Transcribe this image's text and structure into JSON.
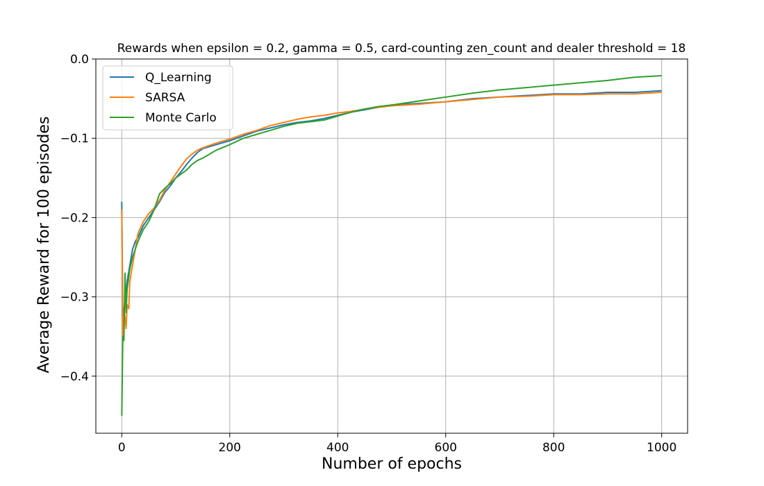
{
  "chart_data": {
    "type": "line",
    "title": "Rewards when epsilon = 0.2, gamma = 0.5, card-counting zen_count and dealer threshold = 18",
    "xlabel": "Number of epochs",
    "ylabel": "Average Reward for 100 episodes",
    "xlim": [
      -48,
      1048
    ],
    "ylim": [
      -0.472,
      0.0
    ],
    "xticks": [
      0,
      200,
      400,
      600,
      800,
      1000
    ],
    "xtick_labels": [
      "0",
      "200",
      "400",
      "600",
      "800",
      "1000"
    ],
    "yticks": [
      0.0,
      -0.1,
      -0.2,
      -0.3,
      -0.4
    ],
    "ytick_labels": [
      "0.0",
      "−0.1",
      "−0.2",
      "−0.3",
      "−0.4"
    ],
    "grid": true,
    "legend_position": "top-left",
    "series": [
      {
        "name": "Q_Learning",
        "color": "#1f77b4",
        "points": [
          [
            0,
            -0.18
          ],
          [
            2,
            -0.33
          ],
          [
            5,
            -0.31
          ],
          [
            8,
            -0.3
          ],
          [
            10,
            -0.28
          ],
          [
            15,
            -0.26
          ],
          [
            20,
            -0.24
          ],
          [
            25,
            -0.23
          ],
          [
            30,
            -0.225
          ],
          [
            40,
            -0.21
          ],
          [
            50,
            -0.2
          ],
          [
            60,
            -0.19
          ],
          [
            70,
            -0.18
          ],
          [
            80,
            -0.168
          ],
          [
            90,
            -0.16
          ],
          [
            100,
            -0.15
          ],
          [
            110,
            -0.142
          ],
          [
            120,
            -0.133
          ],
          [
            130,
            -0.125
          ],
          [
            140,
            -0.118
          ],
          [
            150,
            -0.113
          ],
          [
            175,
            -0.108
          ],
          [
            200,
            -0.103
          ],
          [
            225,
            -0.097
          ],
          [
            250,
            -0.091
          ],
          [
            275,
            -0.087
          ],
          [
            300,
            -0.083
          ],
          [
            325,
            -0.08
          ],
          [
            350,
            -0.078
          ],
          [
            375,
            -0.075
          ],
          [
            400,
            -0.071
          ],
          [
            425,
            -0.067
          ],
          [
            450,
            -0.064
          ],
          [
            475,
            -0.061
          ],
          [
            500,
            -0.058
          ],
          [
            550,
            -0.056
          ],
          [
            600,
            -0.054
          ],
          [
            650,
            -0.05
          ],
          [
            700,
            -0.048
          ],
          [
            750,
            -0.046
          ],
          [
            800,
            -0.044
          ],
          [
            850,
            -0.044
          ],
          [
            900,
            -0.042
          ],
          [
            950,
            -0.042
          ],
          [
            1000,
            -0.04
          ]
        ]
      },
      {
        "name": "SARSA",
        "color": "#ff7f0e",
        "points": [
          [
            0,
            -0.19
          ],
          [
            2,
            -0.35
          ],
          [
            5,
            -0.32
          ],
          [
            8,
            -0.34
          ],
          [
            10,
            -0.31
          ],
          [
            13,
            -0.315
          ],
          [
            15,
            -0.28
          ],
          [
            20,
            -0.26
          ],
          [
            25,
            -0.24
          ],
          [
            30,
            -0.22
          ],
          [
            40,
            -0.205
          ],
          [
            50,
            -0.195
          ],
          [
            60,
            -0.188
          ],
          [
            70,
            -0.178
          ],
          [
            80,
            -0.165
          ],
          [
            90,
            -0.155
          ],
          [
            100,
            -0.145
          ],
          [
            110,
            -0.135
          ],
          [
            120,
            -0.126
          ],
          [
            130,
            -0.12
          ],
          [
            140,
            -0.115
          ],
          [
            150,
            -0.112
          ],
          [
            175,
            -0.106
          ],
          [
            200,
            -0.101
          ],
          [
            225,
            -0.095
          ],
          [
            250,
            -0.09
          ],
          [
            275,
            -0.084
          ],
          [
            300,
            -0.08
          ],
          [
            325,
            -0.076
          ],
          [
            350,
            -0.073
          ],
          [
            375,
            -0.071
          ],
          [
            400,
            -0.068
          ],
          [
            425,
            -0.066
          ],
          [
            450,
            -0.063
          ],
          [
            475,
            -0.061
          ],
          [
            500,
            -0.059
          ],
          [
            550,
            -0.057
          ],
          [
            600,
            -0.054
          ],
          [
            650,
            -0.051
          ],
          [
            700,
            -0.048
          ],
          [
            750,
            -0.047
          ],
          [
            800,
            -0.045
          ],
          [
            850,
            -0.045
          ],
          [
            900,
            -0.044
          ],
          [
            950,
            -0.044
          ],
          [
            1000,
            -0.042
          ]
        ]
      },
      {
        "name": "Monte Carlo",
        "color": "#2ca02c",
        "points": [
          [
            0,
            -0.45
          ],
          [
            2,
            -0.35
          ],
          [
            4,
            -0.355
          ],
          [
            6,
            -0.27
          ],
          [
            8,
            -0.32
          ],
          [
            10,
            -0.29
          ],
          [
            15,
            -0.265
          ],
          [
            20,
            -0.25
          ],
          [
            25,
            -0.24
          ],
          [
            30,
            -0.23
          ],
          [
            40,
            -0.215
          ],
          [
            50,
            -0.205
          ],
          [
            60,
            -0.19
          ],
          [
            70,
            -0.17
          ],
          [
            80,
            -0.163
          ],
          [
            90,
            -0.157
          ],
          [
            100,
            -0.15
          ],
          [
            110,
            -0.145
          ],
          [
            120,
            -0.14
          ],
          [
            130,
            -0.133
          ],
          [
            140,
            -0.128
          ],
          [
            150,
            -0.125
          ],
          [
            175,
            -0.115
          ],
          [
            200,
            -0.108
          ],
          [
            225,
            -0.1
          ],
          [
            250,
            -0.095
          ],
          [
            275,
            -0.09
          ],
          [
            300,
            -0.085
          ],
          [
            325,
            -0.081
          ],
          [
            350,
            -0.079
          ],
          [
            375,
            -0.077
          ],
          [
            400,
            -0.072
          ],
          [
            425,
            -0.067
          ],
          [
            450,
            -0.063
          ],
          [
            475,
            -0.06
          ],
          [
            500,
            -0.058
          ],
          [
            550,
            -0.053
          ],
          [
            600,
            -0.048
          ],
          [
            650,
            -0.043
          ],
          [
            700,
            -0.039
          ],
          [
            750,
            -0.036
          ],
          [
            800,
            -0.033
          ],
          [
            850,
            -0.03
          ],
          [
            900,
            -0.027
          ],
          [
            950,
            -0.023
          ],
          [
            1000,
            -0.021
          ]
        ]
      }
    ]
  }
}
